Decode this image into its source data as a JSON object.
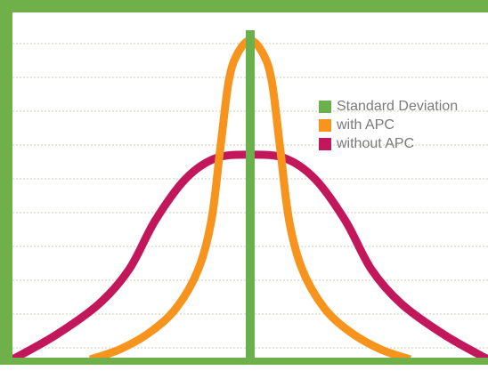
{
  "colors": {
    "frame": "#6fb04a",
    "grid": "#cfcfb8",
    "background": "#ffffff"
  },
  "chart_data": {
    "type": "line",
    "title": "",
    "xlabel": "",
    "ylabel": "",
    "grid": "horizontal dashed lines",
    "legend_position": "top-right",
    "series": [
      {
        "name": "Standard Deviation",
        "kind": "vertical-reference-line",
        "color": "#6ab04c",
        "x": 0
      },
      {
        "name": "with APC",
        "color": "#f7941d",
        "points": [
          [
            -3.7,
            0.0
          ],
          [
            -3.0,
            0.03
          ],
          [
            -2.3,
            0.08
          ],
          [
            -1.7,
            0.15
          ],
          [
            -1.2,
            0.26
          ],
          [
            -0.9,
            0.4
          ],
          [
            -0.7,
            0.6
          ],
          [
            -0.5,
            0.8
          ],
          [
            -0.3,
            0.88
          ],
          [
            0.0,
            0.92
          ],
          [
            0.3,
            0.88
          ],
          [
            0.5,
            0.8
          ],
          [
            0.7,
            0.6
          ],
          [
            0.9,
            0.4
          ],
          [
            1.2,
            0.26
          ],
          [
            1.7,
            0.15
          ],
          [
            2.3,
            0.08
          ],
          [
            3.0,
            0.03
          ],
          [
            3.7,
            0.0
          ]
        ]
      },
      {
        "name": "without APC",
        "color": "#c2185b",
        "points": [
          [
            -5.5,
            0.0
          ],
          [
            -4.5,
            0.07
          ],
          [
            -3.5,
            0.16
          ],
          [
            -2.8,
            0.26
          ],
          [
            -2.2,
            0.4
          ],
          [
            -1.5,
            0.52
          ],
          [
            -0.8,
            0.58
          ],
          [
            0.0,
            0.59
          ],
          [
            0.8,
            0.58
          ],
          [
            1.5,
            0.52
          ],
          [
            2.2,
            0.4
          ],
          [
            2.8,
            0.26
          ],
          [
            3.5,
            0.16
          ],
          [
            4.5,
            0.07
          ],
          [
            5.5,
            0.0
          ]
        ]
      }
    ]
  }
}
